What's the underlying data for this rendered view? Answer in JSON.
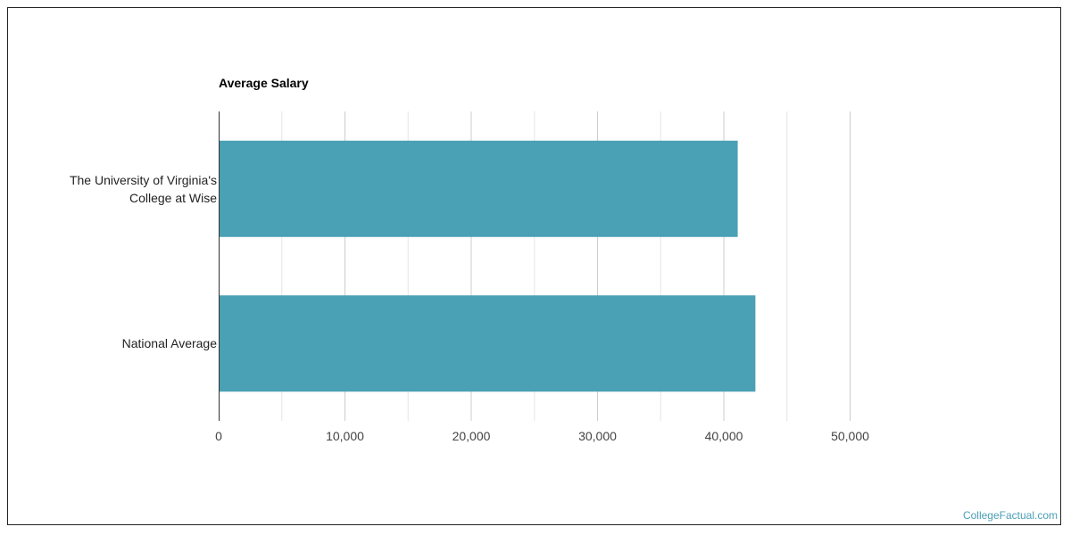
{
  "chart_data": {
    "type": "bar",
    "orientation": "horizontal",
    "title": "Average Salary",
    "categories": [
      [
        "The University of Virginia's",
        "College at Wise"
      ],
      [
        "National Average"
      ]
    ],
    "values": [
      41100,
      42500
    ],
    "xlim": [
      0,
      50000
    ],
    "ticks": [
      "0",
      "10,000",
      "20,000",
      "30,000",
      "40,000",
      "50,000"
    ],
    "tick_values": [
      0,
      10000,
      20000,
      30000,
      40000,
      50000
    ],
    "grid": true,
    "bar_color": "#4aa0b4",
    "grid_color": "#cccccc",
    "axis_color": "#333333"
  },
  "watermark": "CollegeFactual.com"
}
